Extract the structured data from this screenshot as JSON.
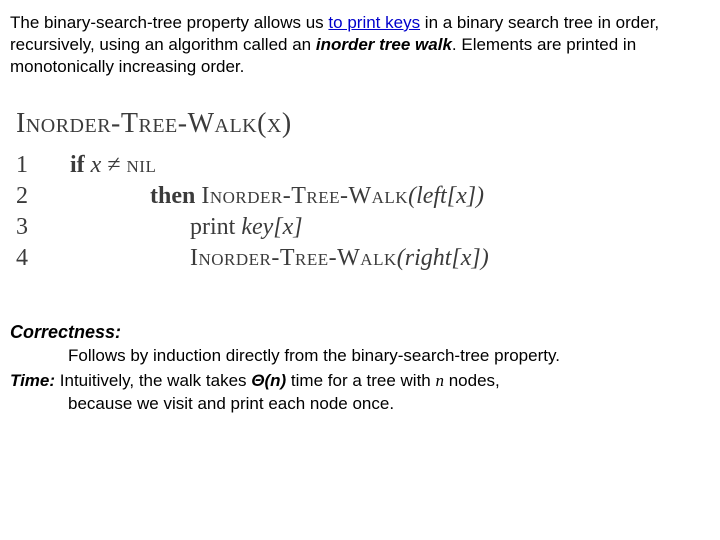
{
  "intro": {
    "t1": "The binary-search-tree property allows us ",
    "link": "to print keys",
    "t2": " in a binary search tree in order, recursively, using an algorithm called an ",
    "em": "inorder tree walk",
    "t3": ". Elements are printed in monotonically increasing order."
  },
  "algo": {
    "title_sc": "Inorder-Tree-Walk",
    "title_arg": "(x)",
    "lines": {
      "n1": "1",
      "n2": "2",
      "n3": "3",
      "n4": "4",
      "if": "if ",
      "x": "x",
      "neq": " ≠ ",
      "nil": "nil",
      "then": "then  ",
      "call1_sc": "Inorder-Tree-Walk",
      "call1_arg": "(left[x])",
      "print": "print ",
      "key": "key[x]",
      "call2_sc": "Inorder-Tree-Walk",
      "call2_arg": "(right[x])"
    }
  },
  "correct": {
    "head": "Correctness:",
    "body": "Follows by induction directly from the binary-search-tree property."
  },
  "time": {
    "label": "Time:",
    "t1": " Intuitively, the walk takes ",
    "theta": "Θ(n)",
    "t2": " time for a tree with ",
    "n": "n",
    "t3": " nodes,",
    "t4": "because we visit and print each node once."
  }
}
